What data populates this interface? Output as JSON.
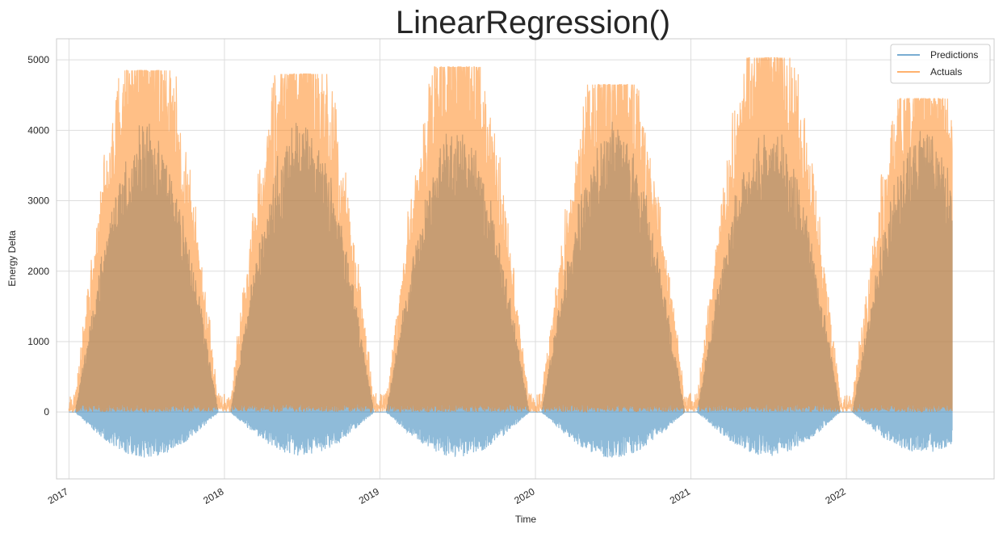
{
  "chart_data": {
    "type": "area",
    "title": "LinearRegression()",
    "xlabel": "Time",
    "ylabel": "Energy Delta",
    "x_ticks": [
      "2017",
      "2018",
      "2019",
      "2020",
      "2021",
      "2022"
    ],
    "y_ticks": [
      0,
      1000,
      2000,
      3000,
      4000,
      5000
    ],
    "xlim": [
      2016.92,
      2022.95
    ],
    "ylim": [
      -950,
      5300
    ],
    "grid": true,
    "legend_position": "top-right",
    "legend": [
      "Predictions",
      "Actuals"
    ],
    "series": [
      {
        "name": "Predictions",
        "color": "#1f77b4",
        "seasonal_peak_by_year": [
          4150,
          4250,
          4100,
          4200,
          4250,
          4150
        ],
        "seasonal_trough_by_year": [
          -650,
          -620,
          -640,
          -650,
          -630,
          -580
        ]
      },
      {
        "name": "Actuals",
        "color": "#ff7f0e",
        "seasonal_peak_by_year": [
          4850,
          4800,
          4900,
          4650,
          5030,
          4450
        ],
        "seasonal_trough_by_year": [
          0,
          0,
          0,
          0,
          0,
          0
        ]
      }
    ]
  }
}
